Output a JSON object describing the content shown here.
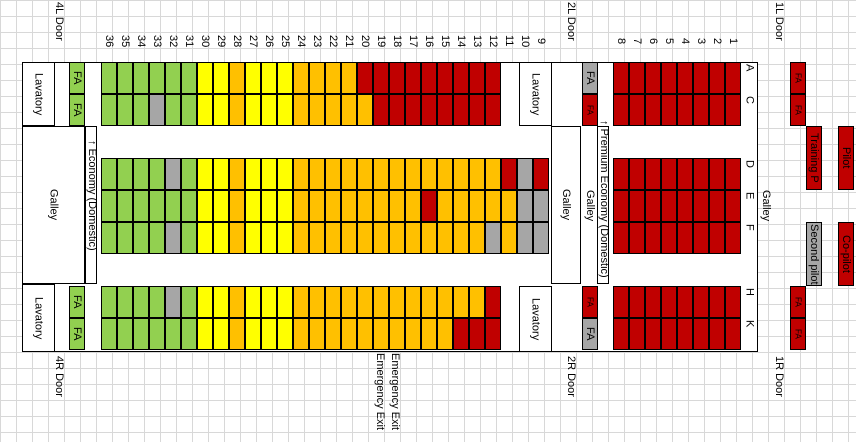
{
  "doors": {
    "l4": "4L Door",
    "l2": "2L Door",
    "l1": "1L Door",
    "r4": "4R Door",
    "r2": "2R Door",
    "r1": "1R Door"
  },
  "areas": {
    "lavatory": "Lavatory",
    "galley": "Galley",
    "fa": "FA"
  },
  "cabins": {
    "economy": "Economy (Domestic)",
    "premium": "Premium Economy (Domestic)"
  },
  "letters": [
    "A",
    "C",
    "D",
    "E",
    "F",
    "H",
    "K"
  ],
  "exits": [
    "Emergency Exit",
    "Emergency Exit"
  ],
  "cockpit": {
    "pilot": "Pilot",
    "training": "Training P",
    "second": "Second pilot",
    "copilot": "Co-pilot"
  },
  "colors": {
    "red": "#c00000",
    "orange": "#ffc000",
    "yellow": "#ffff00",
    "green": "#92d050",
    "gray": "#a6a6a6"
  },
  "rows": [
    {
      "num": "36",
      "seats": [
        "green",
        "green",
        "green",
        "green",
        "green",
        "green",
        "green"
      ]
    },
    {
      "num": "35",
      "seats": [
        "green",
        "green",
        "green",
        "green",
        "green",
        "green",
        "green"
      ]
    },
    {
      "num": "34",
      "seats": [
        "green",
        "green",
        "green",
        "green",
        "green",
        "green",
        "green"
      ]
    },
    {
      "num": "33",
      "seats": [
        "green",
        "gray",
        "green",
        "green",
        "green",
        "green",
        "green"
      ]
    },
    {
      "num": "32",
      "seats": [
        "green",
        "green",
        "gray",
        "green",
        "gray",
        "gray",
        "green"
      ]
    },
    {
      "num": "31",
      "seats": [
        "green",
        "green",
        "green",
        "green",
        "green",
        "green",
        "green"
      ]
    },
    {
      "num": "30",
      "seats": [
        "yellow",
        "yellow",
        "yellow",
        "yellow",
        "yellow",
        "yellow",
        "yellow"
      ]
    },
    {
      "num": "29",
      "seats": [
        "yellow",
        "yellow",
        "yellow",
        "yellow",
        "yellow",
        "yellow",
        "yellow"
      ]
    },
    {
      "num": "28",
      "seats": [
        "orange",
        "orange",
        "orange",
        "orange",
        "orange",
        "orange",
        "orange"
      ]
    },
    {
      "num": "27",
      "seats": [
        "yellow",
        "yellow",
        "yellow",
        "yellow",
        "yellow",
        "yellow",
        "yellow"
      ]
    },
    {
      "num": "26",
      "seats": [
        "yellow",
        "yellow",
        "yellow",
        "yellow",
        "yellow",
        "yellow",
        "yellow"
      ]
    },
    {
      "num": "25",
      "seats": [
        "yellow",
        "yellow",
        "yellow",
        "yellow",
        "yellow",
        "yellow",
        "yellow"
      ]
    },
    {
      "num": "24",
      "seats": [
        "orange",
        "orange",
        "orange",
        "orange",
        "orange",
        "orange",
        "orange"
      ]
    },
    {
      "num": "23",
      "seats": [
        "orange",
        "orange",
        "orange",
        "orange",
        "orange",
        "orange",
        "orange"
      ]
    },
    {
      "num": "22",
      "seats": [
        "orange",
        "orange",
        "orange",
        "orange",
        "orange",
        "orange",
        "orange"
      ]
    },
    {
      "num": "21",
      "seats": [
        "orange",
        "orange",
        "orange",
        "orange",
        "orange",
        "orange",
        "orange"
      ]
    },
    {
      "num": "20",
      "seats": [
        "red",
        "orange",
        "orange",
        "orange",
        "orange",
        "orange",
        "orange"
      ]
    },
    {
      "num": "19",
      "seats": [
        "red",
        "red",
        "orange",
        "orange",
        "orange",
        "orange",
        "orange"
      ]
    },
    {
      "num": "18",
      "seats": [
        "red",
        "red",
        "orange",
        "orange",
        "orange",
        "orange",
        "orange"
      ]
    },
    {
      "num": "17",
      "seats": [
        "red",
        "red",
        "orange",
        "orange",
        "orange",
        "orange",
        "orange"
      ]
    },
    {
      "num": "16",
      "seats": [
        "red",
        "red",
        "orange",
        "red",
        "orange",
        "orange",
        "orange"
      ]
    },
    {
      "num": "15",
      "seats": [
        "red",
        "red",
        "orange",
        "orange",
        "orange",
        "orange",
        "orange"
      ]
    },
    {
      "num": "14",
      "seats": [
        "red",
        "red",
        "orange",
        "orange",
        "orange",
        "orange",
        "red"
      ]
    },
    {
      "num": "13",
      "seats": [
        "red",
        "red",
        "orange",
        "orange",
        "orange",
        "orange",
        "red"
      ]
    },
    {
      "num": "12",
      "seats": [
        "red",
        "red",
        "orange",
        "orange",
        "gray",
        "red",
        "red"
      ]
    },
    {
      "num": "11",
      "seats": [
        "",
        "",
        "red",
        "orange",
        "orange",
        "",
        ""
      ]
    },
    {
      "num": "10",
      "seats": [
        "",
        "",
        "gray",
        "gray",
        "gray",
        "",
        ""
      ]
    },
    {
      "num": "9",
      "seats": [
        "",
        "",
        "red",
        "gray",
        "gray",
        "",
        ""
      ]
    },
    {
      "num": "8",
      "seats": [
        "red",
        "red",
        "red",
        "red",
        "red",
        "red",
        "red"
      ]
    },
    {
      "num": "7",
      "seats": [
        "red",
        "red",
        "red",
        "red",
        "red",
        "red",
        "red"
      ]
    },
    {
      "num": "6",
      "seats": [
        "red",
        "red",
        "red",
        "red",
        "red",
        "red",
        "red"
      ]
    },
    {
      "num": "5",
      "seats": [
        "red",
        "red",
        "red",
        "red",
        "red",
        "red",
        "red"
      ]
    },
    {
      "num": "4",
      "seats": [
        "red",
        "red",
        "red",
        "red",
        "red",
        "red",
        "red"
      ]
    },
    {
      "num": "3",
      "seats": [
        "red",
        "red",
        "red",
        "red",
        "red",
        "red",
        "red"
      ]
    },
    {
      "num": "2",
      "seats": [
        "red",
        "red",
        "red",
        "red",
        "red",
        "red",
        "red"
      ]
    },
    {
      "num": "1",
      "seats": [
        "red",
        "red",
        "red",
        "red",
        "red",
        "red",
        "red"
      ]
    }
  ]
}
